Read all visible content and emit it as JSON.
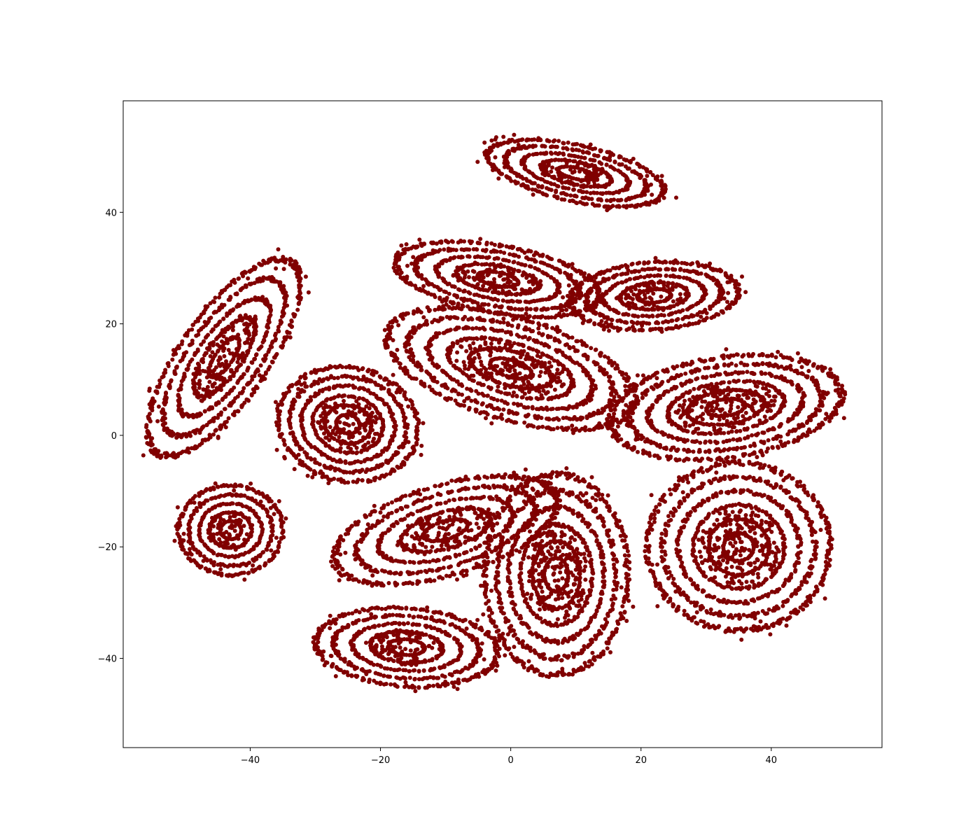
{
  "chart_data": {
    "type": "scatter",
    "title": "",
    "xlabel": "",
    "ylabel": "",
    "xlim": [
      -59.5,
      57
    ],
    "ylim": [
      -56,
      60
    ],
    "x_ticks": [
      -40,
      -20,
      0,
      20,
      40
    ],
    "y_ticks": [
      -40,
      -20,
      0,
      20,
      40
    ],
    "x_tick_labels": [
      "−40",
      "−20",
      "0",
      "20",
      "40"
    ],
    "y_tick_labels": [
      "−40",
      "−20",
      "0",
      "20",
      "40"
    ],
    "grid": false,
    "legend": "none",
    "marker_color": "#800000",
    "series": [
      {
        "clusters": [
          {
            "center": [
              10,
              47
            ],
            "radii": [
              14,
              5
            ],
            "rotation": -15,
            "rings": 5
          },
          {
            "center": [
              -2,
              28
            ],
            "radii": [
              16,
              6
            ],
            "rotation": -12,
            "rings": 5
          },
          {
            "center": [
              22,
              25
            ],
            "radii": [
              13,
              6
            ],
            "rotation": 5,
            "rings": 5
          },
          {
            "center": [
              0,
              12
            ],
            "radii": [
              20,
              9
            ],
            "rotation": -20,
            "rings": 6
          },
          {
            "center": [
              -25,
              2
            ],
            "radii": [
              11,
              10
            ],
            "rotation": -30,
            "rings": 6
          },
          {
            "center": [
              33,
              5
            ],
            "radii": [
              18,
              9
            ],
            "rotation": 10,
            "rings": 6
          },
          {
            "center": [
              -44,
              14
            ],
            "radii": [
              7,
              20
            ],
            "rotation": -30,
            "rings": 5
          },
          {
            "center": [
              -43,
              -17
            ],
            "radii": [
              8,
              8
            ],
            "rotation": 0,
            "rings": 5
          },
          {
            "center": [
              -10,
              -17
            ],
            "radii": [
              18,
              8
            ],
            "rotation": 20,
            "rings": 5
          },
          {
            "center": [
              7,
              -25
            ],
            "radii": [
              11,
              18
            ],
            "rotation": 0,
            "rings": 6
          },
          {
            "center": [
              35,
              -20
            ],
            "radii": [
              14,
              15
            ],
            "rotation": 0,
            "rings": 6
          },
          {
            "center": [
              -16,
              -38
            ],
            "radii": [
              14,
              7
            ],
            "rotation": -5,
            "rings": 5
          }
        ]
      }
    ]
  }
}
